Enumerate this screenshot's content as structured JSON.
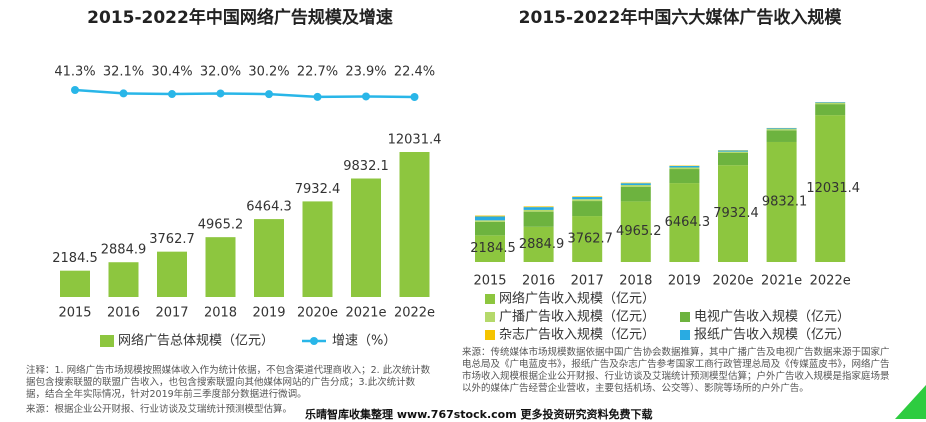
{
  "chart_data": [
    {
      "type": "bar-line",
      "title": "2015-2022年中国网络广告规模及增速",
      "categories": [
        "2015",
        "2016",
        "2017",
        "2018",
        "2019",
        "2020e",
        "2021e",
        "2022e"
      ],
      "series": [
        {
          "name": "网络广告总体规模（亿元）",
          "color": "#8dc63f",
          "values": [
            2184.5,
            2884.9,
            3762.7,
            4965.2,
            6464.3,
            7932.4,
            9832.1,
            12031.4
          ]
        },
        {
          "name": "增速（%）",
          "color": "#29b6e8",
          "values": [
            41.3,
            32.1,
            30.4,
            32.0,
            30.2,
            22.7,
            23.9,
            22.4
          ],
          "value_labels": [
            "41.3%",
            "32.1%",
            "30.4%",
            "32.0%",
            "30.2%",
            "22.7%",
            "23.9%",
            "22.4%"
          ]
        }
      ],
      "notes": [
        "注释：1. 网络广告市场规模按照媒体收入作为统计依据，不包含渠道代理商收入；2. 此次统计数据包含搜索联盟的联盟广告收入，也包含搜索联盟向其他媒体网站的广告分成；3.此次统计数据，结合全年实际情况，针对2019年前三季度部分数据进行微调。",
        "来源：根据企业公开财报、行业访谈及艾瑞统计预测模型估算。"
      ]
    },
    {
      "type": "stacked-bar",
      "title": "2015-2022年中国六大媒体广告收入规模",
      "categories": [
        "2015",
        "2016",
        "2017",
        "2018",
        "2019",
        "2020e",
        "2021e",
        "2022e"
      ],
      "series": [
        {
          "name": "网络广告收入规模（亿元）",
          "color": "#8dc63f",
          "values": [
            2184.5,
            2884.9,
            3762.7,
            4965.2,
            6464.3,
            7932.4,
            9832.1,
            12031.4
          ]
        },
        {
          "name": "电视广告收入规模（亿元）",
          "color": "#6db33f",
          "values": [
            1100,
            1240,
            1230,
            1200,
            1150,
            1000,
            950,
            900
          ]
        },
        {
          "name": "广播广告收入规模（亿元）",
          "color": "#b5d96b",
          "values": [
            130,
            140,
            150,
            140,
            130,
            110,
            105,
            100
          ]
        },
        {
          "name": "报纸广告收入规模（亿元）",
          "color": "#29abe2",
          "values": [
            320,
            230,
            180,
            150,
            120,
            90,
            75,
            60
          ]
        },
        {
          "name": "杂志广告收入规模（亿元）",
          "color": "#f5c400",
          "values": [
            70,
            60,
            50,
            45,
            35,
            25,
            20,
            15
          ]
        }
      ],
      "notes": [
        "来源：传统媒体市场规模数据依据中国广告协会数据推算，其中广播广告及电视广告数据来源于国家广电总局及《广电蓝皮书》，报纸广告及杂志广告参考国家工商行政管理总局及《传媒蓝皮书》，网络广告市场收入规模根据企业公开财报、行业访谈及艾瑞统计预测模型估算；户外广告收入规模是指家庭场景以外的媒体广告经营企业营收，主要包括机场、公交等）、影院等场所的户外广告。"
      ]
    }
  ],
  "watermark": "乐晴智库收集整理 www.767stock.com 更多投资研究资料免费下载"
}
